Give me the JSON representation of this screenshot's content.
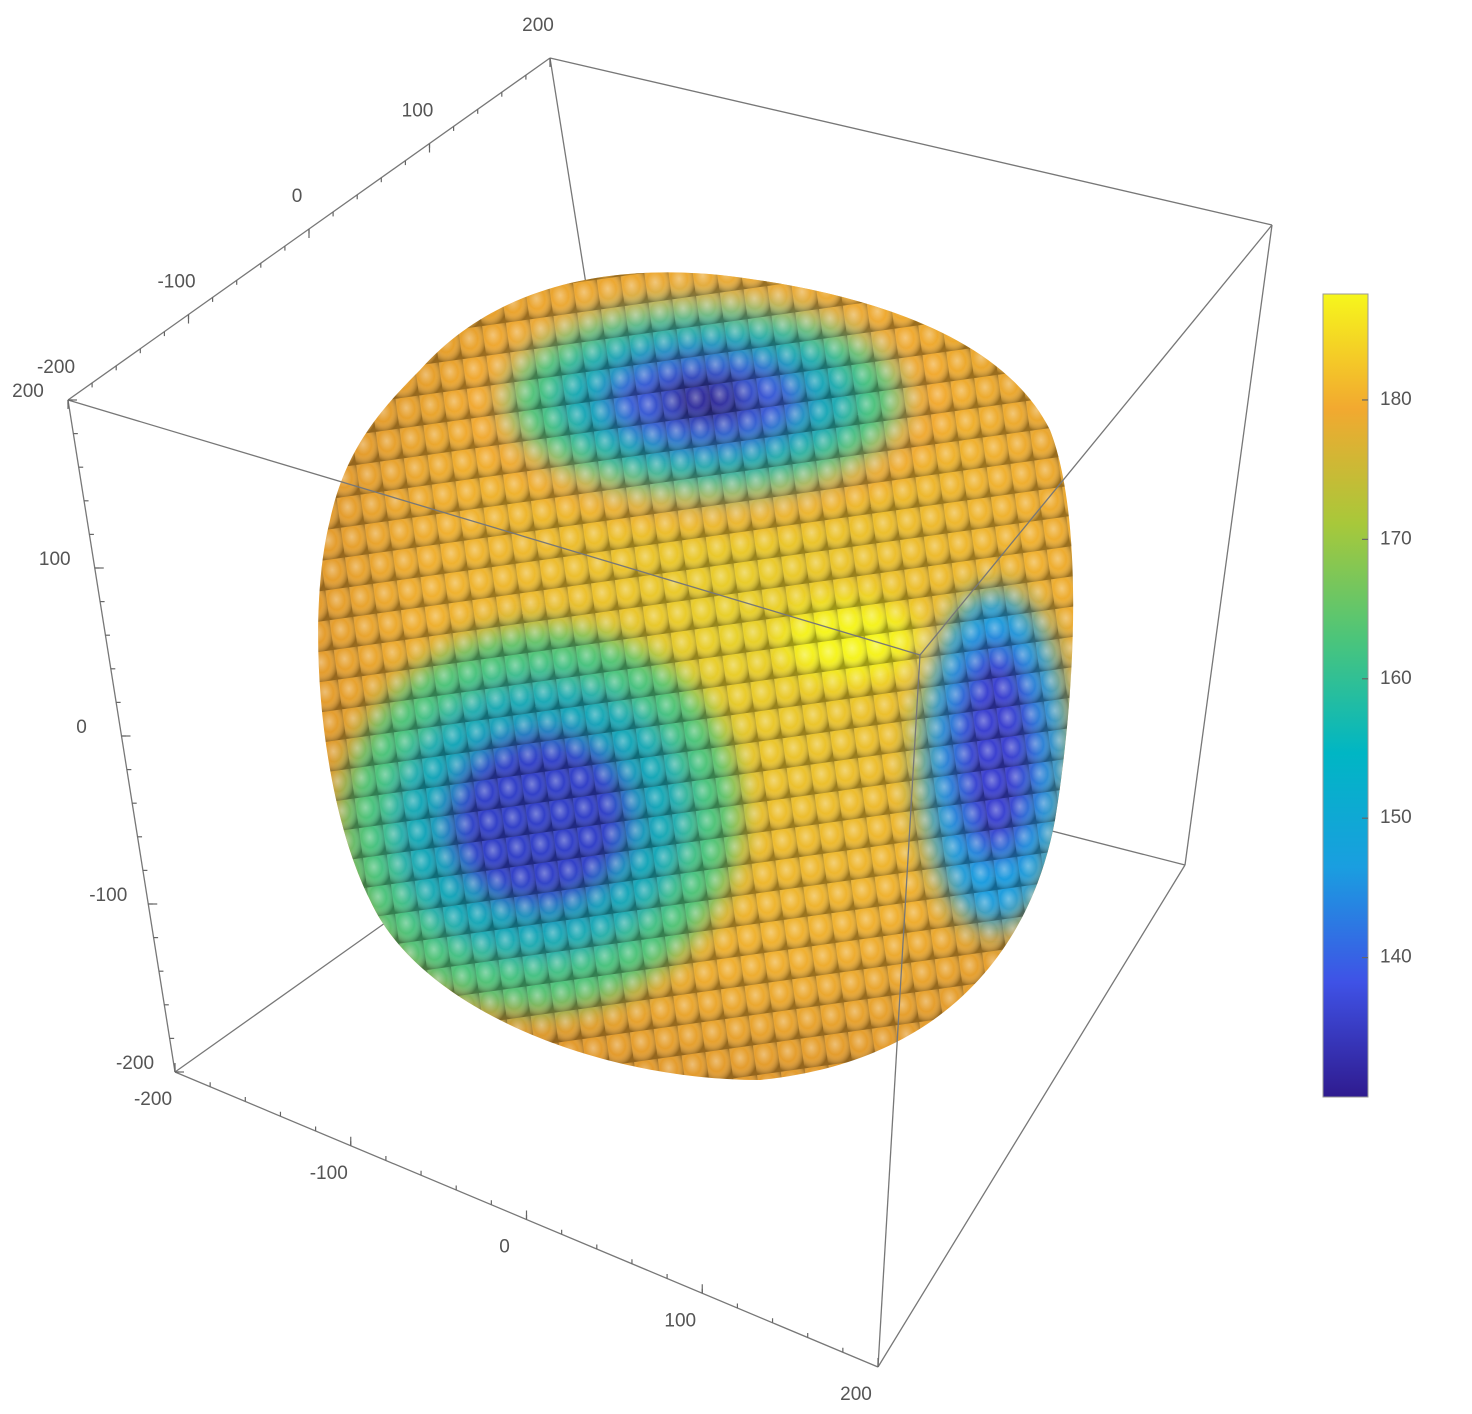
{
  "chart_data": {
    "type": "surface3d",
    "axes": [
      {
        "lim": [
          -200,
          200
        ],
        "ticks": [
          -200,
          -100,
          0,
          100,
          200
        ]
      },
      {
        "lim": [
          -200,
          200
        ],
        "ticks": [
          -200,
          -100,
          0,
          100,
          200
        ]
      },
      {
        "lim": [
          -200,
          200
        ],
        "ticks": [
          -200,
          -100,
          0,
          100,
          200
        ]
      }
    ],
    "colorbar": {
      "lim": [
        130,
        187.6
      ],
      "ticks": [
        140,
        150,
        160,
        170,
        180
      ],
      "colors": [
        "#2f1b8f",
        "#3f52e6",
        "#1a9ee0",
        "#00b6c4",
        "#4cc57a",
        "#a8c83a",
        "#f2a930",
        "#f6f61c"
      ]
    }
  }
}
